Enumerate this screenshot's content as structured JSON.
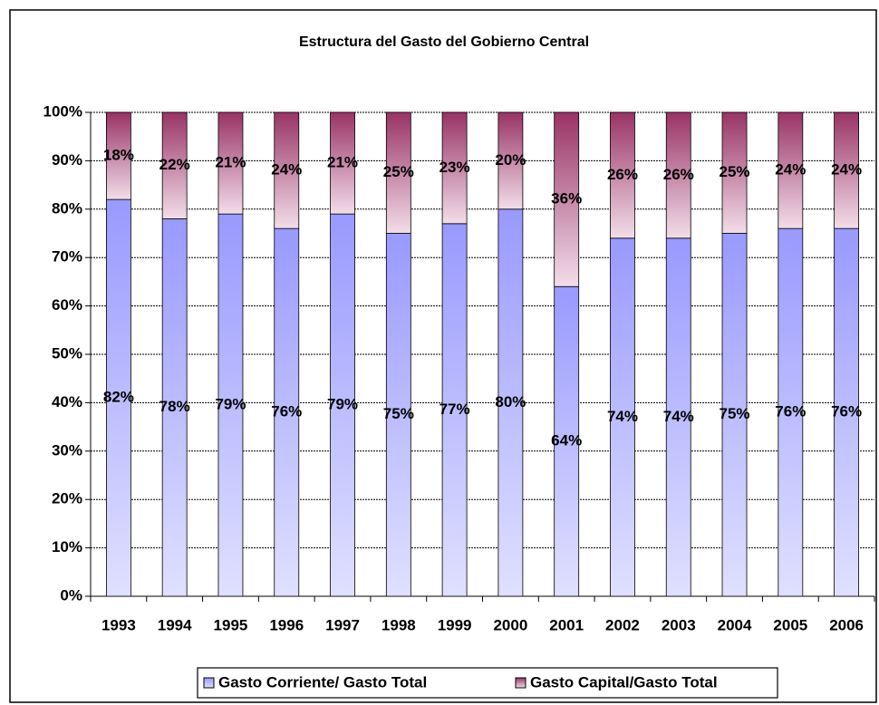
{
  "chart_data": {
    "type": "stacked_bar",
    "title": "Estructura del Gasto del Gobierno Central",
    "categories": [
      "1993",
      "1994",
      "1995",
      "1996",
      "1997",
      "1998",
      "1999",
      "2000",
      "2001",
      "2002",
      "2003",
      "2004",
      "2005",
      "2006"
    ],
    "series": [
      {
        "name": "Gasto Corriente/ Gasto Total",
        "color": "#9999ff",
        "values": [
          82,
          78,
          79,
          76,
          79,
          75,
          77,
          80,
          64,
          74,
          74,
          75,
          76,
          76
        ],
        "value_labels": [
          "82%",
          "78%",
          "79%",
          "76%",
          "79%",
          "75%",
          "77%",
          "80%",
          "64%",
          "74%",
          "74%",
          "75%",
          "76%",
          "76%"
        ]
      },
      {
        "name": "Gasto Capital/Gasto Total",
        "color": "#993366",
        "values": [
          18,
          22,
          21,
          24,
          21,
          25,
          23,
          20,
          36,
          26,
          26,
          25,
          24,
          24
        ],
        "value_labels": [
          "18%",
          "22%",
          "21%",
          "24%",
          "21%",
          "25%",
          "23%",
          "20%",
          "36%",
          "26%",
          "26%",
          "25%",
          "24%",
          "24%"
        ]
      }
    ],
    "ylim": [
      0,
      100
    ],
    "yticks": [
      {
        "value": 0,
        "label": "0%"
      },
      {
        "value": 10,
        "label": "10%"
      },
      {
        "value": 20,
        "label": "20%"
      },
      {
        "value": 30,
        "label": "30%"
      },
      {
        "value": 40,
        "label": "40%"
      },
      {
        "value": 50,
        "label": "50%"
      },
      {
        "value": 60,
        "label": "60%"
      },
      {
        "value": 70,
        "label": "70%"
      },
      {
        "value": 80,
        "label": "80%"
      },
      {
        "value": 90,
        "label": "90%"
      },
      {
        "value": 100,
        "label": "100%"
      }
    ],
    "grid": true,
    "legend": "bottom"
  }
}
